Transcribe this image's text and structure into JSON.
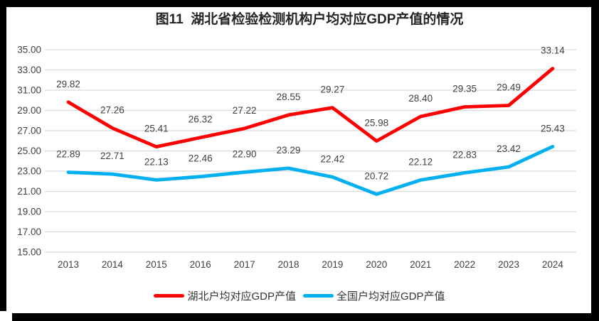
{
  "figure": {
    "title": "图11  湖北省检验检测机构户均对应GDP产值的情况"
  },
  "chart_data": {
    "type": "line",
    "title": "图11  湖北省检验检测机构户均对应GDP产值的情况",
    "categories": [
      "2013",
      "2014",
      "2015",
      "2016",
      "2017",
      "2018",
      "2019",
      "2020",
      "2021",
      "2022",
      "2023",
      "2024"
    ],
    "series": [
      {
        "name": "湖北户均对应GDP产值",
        "color": "#FE0000",
        "values": [
          29.82,
          27.26,
          25.41,
          26.32,
          27.22,
          28.55,
          29.27,
          25.98,
          28.4,
          29.35,
          29.49,
          33.14
        ]
      },
      {
        "name": "全国户均对应GDP产值",
        "color": "#00B0F0",
        "values": [
          22.89,
          22.71,
          22.13,
          22.46,
          22.9,
          23.29,
          22.42,
          20.72,
          22.12,
          22.83,
          23.42,
          25.43
        ]
      }
    ],
    "ylim": [
      15,
      35
    ],
    "ytick_step": 2,
    "ytick_labels": [
      "15.00",
      "17.00",
      "19.00",
      "21.00",
      "23.00",
      "25.00",
      "27.00",
      "29.00",
      "31.00",
      "33.00",
      "35.00"
    ],
    "grid": "horizontal",
    "data_labels": true,
    "legend_position": "bottom",
    "styles": {
      "grid_color": "#D9D9D9",
      "axis_text_color": "#404040",
      "data_label_color": "#3F3F3F",
      "line_width": 4.8,
      "frame_color": "#000000"
    }
  }
}
